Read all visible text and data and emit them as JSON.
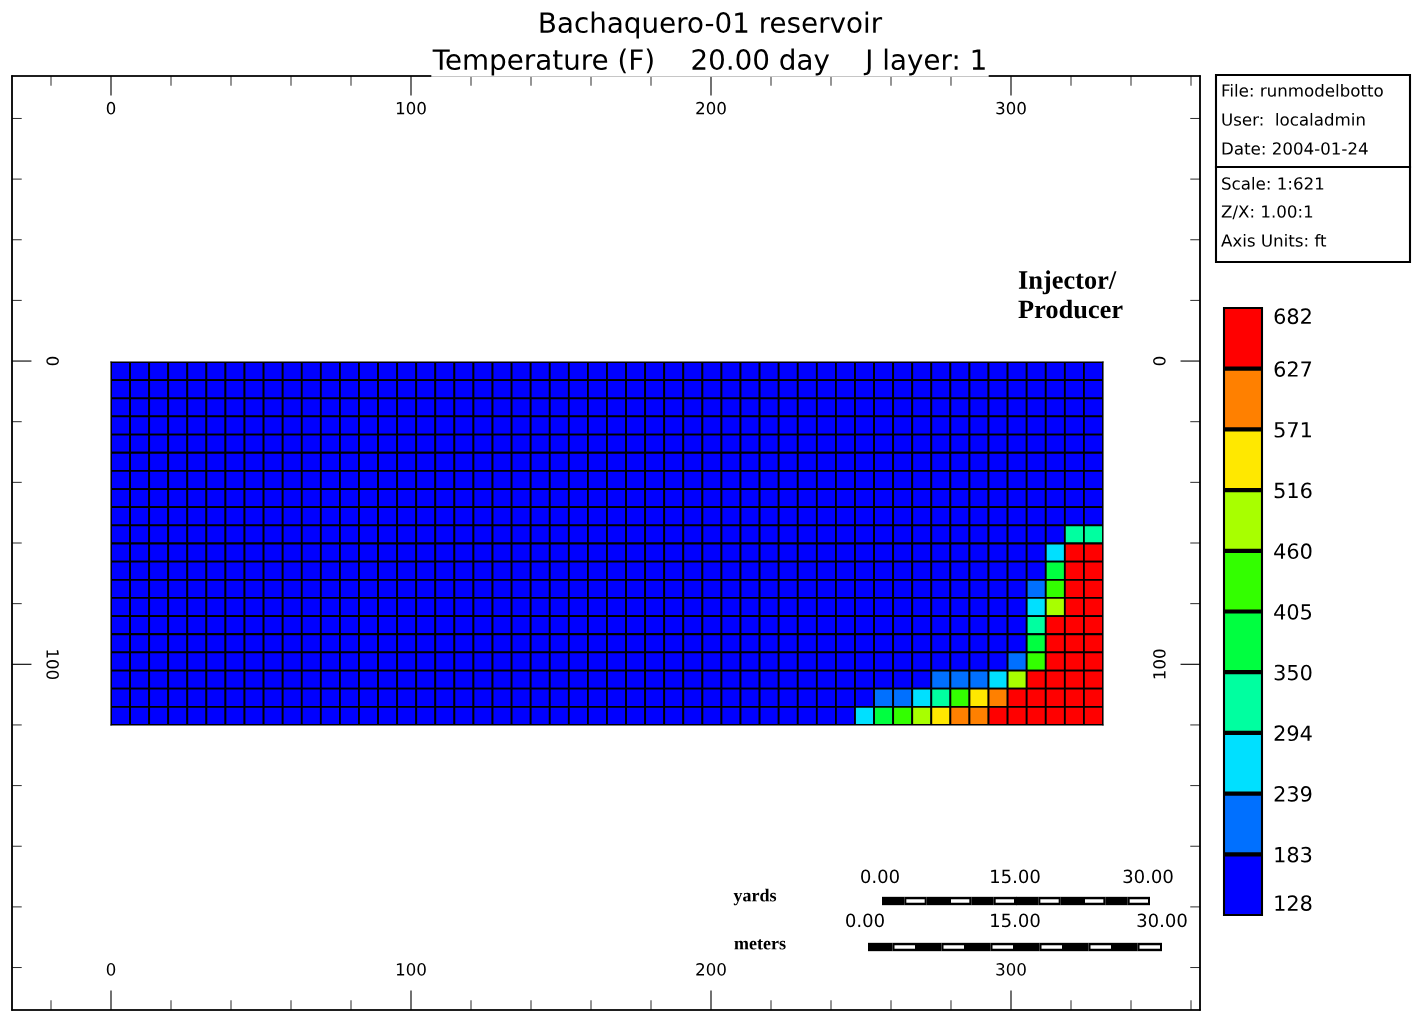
{
  "chart_data": [
    {
      "type": "heatmap",
      "title": "Bachaquero-01 reservoir",
      "subtitle": "Temperature (F)    20.00 day    J layer: 1",
      "categories": [
        null,
        null,
        null,
        null,
        null,
        null,
        null,
        null,
        null,
        null,
        null,
        null,
        null,
        null,
        null,
        null,
        null,
        null,
        null,
        null,
        null,
        null,
        null,
        null,
        null,
        null,
        null,
        null,
        null,
        null,
        null,
        null,
        null,
        null,
        null,
        null,
        null,
        null,
        null,
        null,
        null,
        null,
        null,
        null,
        null,
        null,
        null,
        null,
        null,
        null,
        null,
        null
      ],
      "y_categories": [
        null,
        null,
        null,
        null,
        null,
        null,
        null,
        null,
        null,
        null,
        null,
        null,
        null,
        null,
        null,
        null,
        null,
        null,
        null,
        null
      ],
      "cells": [
        [
          155,
          155,
          155,
          155,
          155,
          155,
          155,
          155,
          155,
          155,
          155,
          155,
          155,
          155,
          155,
          155,
          155,
          155,
          155,
          155,
          155,
          155,
          155,
          155,
          155,
          155,
          155,
          155,
          155,
          155,
          155,
          155,
          155,
          155,
          155,
          155,
          155,
          155,
          155,
          155,
          155,
          155,
          155,
          155,
          155,
          155,
          155,
          155,
          155,
          155,
          155,
          155
        ],
        [
          155,
          155,
          155,
          155,
          155,
          155,
          155,
          155,
          155,
          155,
          155,
          155,
          155,
          155,
          155,
          155,
          155,
          155,
          155,
          155,
          155,
          155,
          155,
          155,
          155,
          155,
          155,
          155,
          155,
          155,
          155,
          155,
          155,
          155,
          155,
          155,
          155,
          155,
          155,
          155,
          155,
          155,
          155,
          155,
          155,
          155,
          155,
          155,
          155,
          155,
          155,
          155
        ],
        [
          155,
          155,
          155,
          155,
          155,
          155,
          155,
          155,
          155,
          155,
          155,
          155,
          155,
          155,
          155,
          155,
          155,
          155,
          155,
          155,
          155,
          155,
          155,
          155,
          155,
          155,
          155,
          155,
          155,
          155,
          155,
          155,
          155,
          155,
          155,
          155,
          155,
          155,
          155,
          155,
          155,
          155,
          155,
          155,
          155,
          155,
          155,
          155,
          155,
          155,
          155,
          155
        ],
        [
          155,
          155,
          155,
          155,
          155,
          155,
          155,
          155,
          155,
          155,
          155,
          155,
          155,
          155,
          155,
          155,
          155,
          155,
          155,
          155,
          155,
          155,
          155,
          155,
          155,
          155,
          155,
          155,
          155,
          155,
          155,
          155,
          155,
          155,
          155,
          155,
          155,
          155,
          155,
          155,
          155,
          155,
          155,
          155,
          155,
          155,
          155,
          155,
          155,
          155,
          155,
          155
        ],
        [
          155,
          155,
          155,
          155,
          155,
          155,
          155,
          155,
          155,
          155,
          155,
          155,
          155,
          155,
          155,
          155,
          155,
          155,
          155,
          155,
          155,
          155,
          155,
          155,
          155,
          155,
          155,
          155,
          155,
          155,
          155,
          155,
          155,
          155,
          155,
          155,
          155,
          155,
          155,
          155,
          155,
          155,
          155,
          155,
          155,
          155,
          155,
          155,
          155,
          155,
          155,
          155
        ],
        [
          155,
          155,
          155,
          155,
          155,
          155,
          155,
          155,
          155,
          155,
          155,
          155,
          155,
          155,
          155,
          155,
          155,
          155,
          155,
          155,
          155,
          155,
          155,
          155,
          155,
          155,
          155,
          155,
          155,
          155,
          155,
          155,
          155,
          155,
          155,
          155,
          155,
          155,
          155,
          155,
          155,
          155,
          155,
          155,
          155,
          155,
          155,
          155,
          155,
          155,
          155,
          155
        ],
        [
          155,
          155,
          155,
          155,
          155,
          155,
          155,
          155,
          155,
          155,
          155,
          155,
          155,
          155,
          155,
          155,
          155,
          155,
          155,
          155,
          155,
          155,
          155,
          155,
          155,
          155,
          155,
          155,
          155,
          155,
          155,
          155,
          155,
          155,
          155,
          155,
          155,
          155,
          155,
          155,
          155,
          155,
          155,
          155,
          155,
          155,
          155,
          155,
          155,
          155,
          155,
          155
        ],
        [
          155,
          155,
          155,
          155,
          155,
          155,
          155,
          155,
          155,
          155,
          155,
          155,
          155,
          155,
          155,
          155,
          155,
          155,
          155,
          155,
          155,
          155,
          155,
          155,
          155,
          155,
          155,
          155,
          155,
          155,
          155,
          155,
          155,
          155,
          155,
          155,
          155,
          155,
          155,
          155,
          155,
          155,
          155,
          155,
          155,
          155,
          155,
          155,
          155,
          155,
          155,
          155
        ],
        [
          155,
          155,
          155,
          155,
          155,
          155,
          155,
          155,
          155,
          155,
          155,
          155,
          155,
          155,
          155,
          155,
          155,
          155,
          155,
          155,
          155,
          155,
          155,
          155,
          155,
          155,
          155,
          155,
          155,
          155,
          155,
          155,
          155,
          155,
          155,
          155,
          155,
          155,
          155,
          155,
          155,
          155,
          155,
          155,
          155,
          155,
          155,
          155,
          155,
          155,
          155,
          155
        ],
        [
          155,
          155,
          155,
          155,
          155,
          155,
          155,
          155,
          155,
          155,
          155,
          155,
          155,
          155,
          155,
          155,
          155,
          155,
          155,
          155,
          155,
          155,
          155,
          155,
          155,
          155,
          155,
          155,
          155,
          155,
          155,
          155,
          155,
          155,
          155,
          155,
          155,
          155,
          155,
          155,
          155,
          155,
          155,
          155,
          155,
          155,
          155,
          155,
          155,
          155,
          322,
          322
        ],
        [
          155,
          155,
          155,
          155,
          155,
          155,
          155,
          155,
          155,
          155,
          155,
          155,
          155,
          155,
          155,
          155,
          155,
          155,
          155,
          155,
          155,
          155,
          155,
          155,
          155,
          155,
          155,
          155,
          155,
          155,
          155,
          155,
          155,
          155,
          155,
          155,
          155,
          155,
          155,
          155,
          155,
          155,
          155,
          155,
          155,
          155,
          155,
          155,
          155,
          266,
          654,
          654
        ],
        [
          155,
          155,
          155,
          155,
          155,
          155,
          155,
          155,
          155,
          155,
          155,
          155,
          155,
          155,
          155,
          155,
          155,
          155,
          155,
          155,
          155,
          155,
          155,
          155,
          155,
          155,
          155,
          155,
          155,
          155,
          155,
          155,
          155,
          155,
          155,
          155,
          155,
          155,
          155,
          155,
          155,
          155,
          155,
          155,
          155,
          155,
          155,
          155,
          155,
          377,
          654,
          654
        ],
        [
          155,
          155,
          155,
          155,
          155,
          155,
          155,
          155,
          155,
          155,
          155,
          155,
          155,
          155,
          155,
          155,
          155,
          155,
          155,
          155,
          155,
          155,
          155,
          155,
          155,
          155,
          155,
          155,
          155,
          155,
          155,
          155,
          155,
          155,
          155,
          155,
          155,
          155,
          155,
          155,
          155,
          155,
          155,
          155,
          155,
          155,
          155,
          155,
          211,
          432,
          654,
          654
        ],
        [
          155,
          155,
          155,
          155,
          155,
          155,
          155,
          155,
          155,
          155,
          155,
          155,
          155,
          155,
          155,
          155,
          155,
          155,
          155,
          155,
          155,
          155,
          155,
          155,
          155,
          155,
          155,
          155,
          155,
          155,
          155,
          155,
          155,
          155,
          155,
          155,
          155,
          155,
          155,
          155,
          155,
          155,
          155,
          155,
          155,
          155,
          155,
          155,
          266,
          488,
          654,
          654
        ],
        [
          155,
          155,
          155,
          155,
          155,
          155,
          155,
          155,
          155,
          155,
          155,
          155,
          155,
          155,
          155,
          155,
          155,
          155,
          155,
          155,
          155,
          155,
          155,
          155,
          155,
          155,
          155,
          155,
          155,
          155,
          155,
          155,
          155,
          155,
          155,
          155,
          155,
          155,
          155,
          155,
          155,
          155,
          155,
          155,
          155,
          155,
          155,
          155,
          322,
          654,
          654,
          654
        ],
        [
          155,
          155,
          155,
          155,
          155,
          155,
          155,
          155,
          155,
          155,
          155,
          155,
          155,
          155,
          155,
          155,
          155,
          155,
          155,
          155,
          155,
          155,
          155,
          155,
          155,
          155,
          155,
          155,
          155,
          155,
          155,
          155,
          155,
          155,
          155,
          155,
          155,
          155,
          155,
          155,
          155,
          155,
          155,
          155,
          155,
          155,
          155,
          155,
          377,
          654,
          654,
          654
        ],
        [
          155,
          155,
          155,
          155,
          155,
          155,
          155,
          155,
          155,
          155,
          155,
          155,
          155,
          155,
          155,
          155,
          155,
          155,
          155,
          155,
          155,
          155,
          155,
          155,
          155,
          155,
          155,
          155,
          155,
          155,
          155,
          155,
          155,
          155,
          155,
          155,
          155,
          155,
          155,
          155,
          155,
          155,
          155,
          155,
          155,
          155,
          155,
          211,
          432,
          654,
          654,
          654
        ],
        [
          155,
          155,
          155,
          155,
          155,
          155,
          155,
          155,
          155,
          155,
          155,
          155,
          155,
          155,
          155,
          155,
          155,
          155,
          155,
          155,
          155,
          155,
          155,
          155,
          155,
          155,
          155,
          155,
          155,
          155,
          155,
          155,
          155,
          155,
          155,
          155,
          155,
          155,
          155,
          155,
          155,
          155,
          155,
          211,
          211,
          211,
          266,
          488,
          654,
          654,
          654,
          654
        ],
        [
          155,
          155,
          155,
          155,
          155,
          155,
          155,
          155,
          155,
          155,
          155,
          155,
          155,
          155,
          155,
          155,
          155,
          155,
          155,
          155,
          155,
          155,
          155,
          155,
          155,
          155,
          155,
          155,
          155,
          155,
          155,
          155,
          155,
          155,
          155,
          155,
          155,
          155,
          155,
          155,
          211,
          211,
          266,
          322,
          432,
          543,
          599,
          654,
          654,
          654,
          654,
          654
        ],
        [
          155,
          155,
          155,
          155,
          155,
          155,
          155,
          155,
          155,
          155,
          155,
          155,
          155,
          155,
          155,
          155,
          155,
          155,
          155,
          155,
          155,
          155,
          155,
          155,
          155,
          155,
          155,
          155,
          155,
          155,
          155,
          155,
          155,
          155,
          155,
          155,
          155,
          155,
          155,
          266,
          377,
          432,
          488,
          543,
          599,
          599,
          654,
          654,
          654,
          654,
          654,
          654
        ]
      ],
      "colors": [
        "#0000ff",
        "#0070ff",
        "#00e0ff",
        "#00ffa0",
        "#00ff40",
        "#33ff00",
        "#a8ff00",
        "#ffe800",
        "#ff8000",
        "#ff0000"
      ],
      "clim": [
        128,
        682
      ],
      "cticks": [
        128,
        183,
        239,
        294,
        350,
        405,
        460,
        516,
        571,
        627,
        682
      ],
      "annotations": [
        "File: runmodelbotto",
        "User:  localadmin",
        "Date: 2004-01-24",
        "Scale: 1:621",
        "Z/X: 1.00:1",
        "Axis Units: ft",
        "yards",
        "meters",
        "0.00",
        "15.00",
        "30.00",
        "0.00",
        "15.00",
        "30.00",
        "Injector/\nProducer"
      ]
    },
    {
      "type": "scatter",
      "xlim": [
        -33,
        363
      ],
      "xticks": [
        0,
        100,
        200,
        300
      ],
      "x2lim": [
        -33,
        363
      ],
      "x2ticks": [
        0,
        100,
        200,
        300
      ],
      "ylim": [
        214,
        -94
      ],
      "yticks": [
        0,
        100
      ],
      "y2lim": [
        214,
        -94
      ],
      "y2ticks": [
        0,
        100
      ]
    }
  ]
}
